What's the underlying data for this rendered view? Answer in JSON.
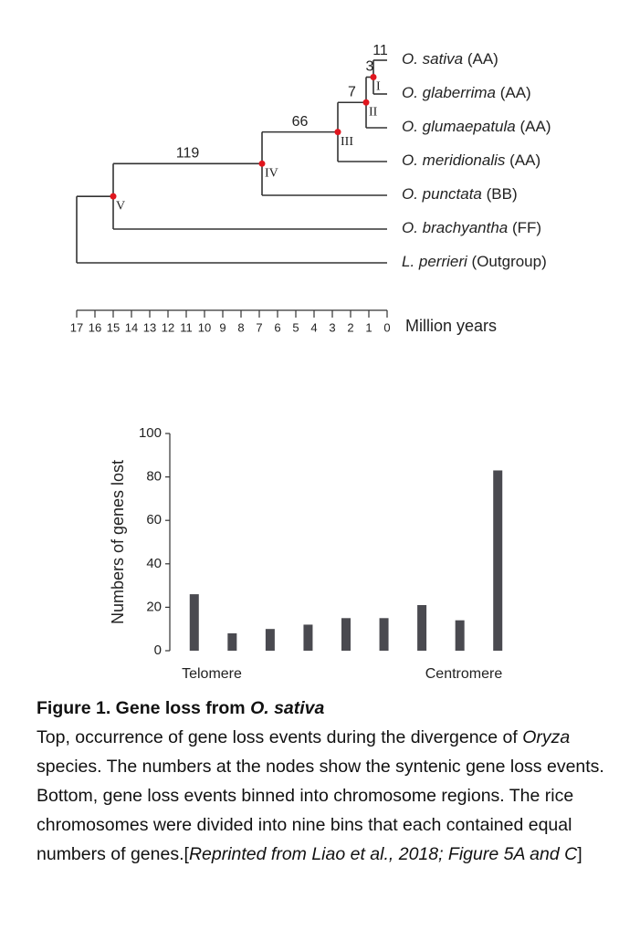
{
  "tree": {
    "leaves": [
      {
        "name": "O. sativa",
        "group": "(AA)",
        "losses": 11
      },
      {
        "name": "O. glaberrima",
        "group": "(AA)"
      },
      {
        "name": "O. glumaepatula",
        "group": "(AA)"
      },
      {
        "name": "O. meridionalis",
        "group": "(AA)"
      },
      {
        "name": "O. punctata",
        "group": "(BB)"
      },
      {
        "name": "O. brachyantha",
        "group": "(FF)"
      },
      {
        "name": "L. perrieri",
        "group": "(Outgroup)"
      }
    ],
    "nodes": [
      {
        "label": "I",
        "age": 0.75,
        "losses": 3
      },
      {
        "label": "II",
        "age": 1.15,
        "losses": 7
      },
      {
        "label": "III",
        "age": 2.7,
        "losses": 66
      },
      {
        "label": "IV",
        "age": 6.85,
        "losses": 119
      },
      {
        "label": "V",
        "age": 15
      }
    ],
    "xlim": [
      17,
      0
    ],
    "xticks": [
      17,
      16,
      15,
      14,
      13,
      12,
      11,
      10,
      9,
      8,
      7,
      6,
      5,
      4,
      3,
      2,
      1,
      0
    ],
    "xlabel": "Million years"
  },
  "chart_data": {
    "type": "bar",
    "ylabel": "Numbers of genes lost",
    "categories": [
      null,
      null,
      null,
      null,
      null,
      null,
      null,
      null,
      null
    ],
    "values": [
      26,
      8,
      10,
      12,
      15,
      15,
      21,
      14,
      83
    ],
    "color": "#4a4a50",
    "ylim": [
      0,
      100
    ],
    "yticks": [
      0,
      20,
      40,
      60,
      80,
      100
    ],
    "x_end_labels": [
      "Telomere",
      "Centromere"
    ]
  },
  "caption": {
    "title": [
      "Figure 1. Gene loss from ",
      "O. sativa"
    ],
    "body": [
      "Top, occurrence of gene loss events during the divergence of ",
      "Oryza",
      " species. The numbers at the nodes show the syntenic gene loss events. Bottom, gene loss events binned into chromosome regions. The rice chromosomes were divided into nine bins that each contained equal numbers of genes.[",
      "Reprinted from Liao et al., 2018; Figure 5A and C",
      "]"
    ]
  }
}
